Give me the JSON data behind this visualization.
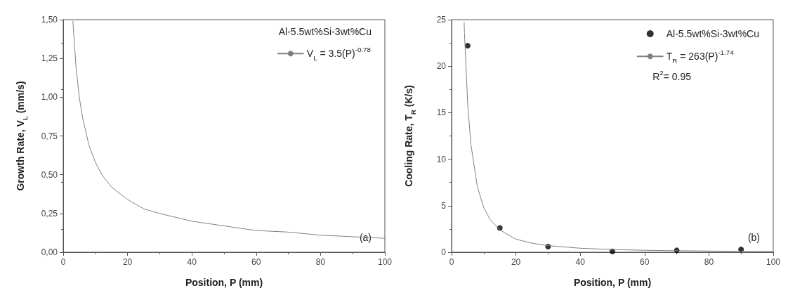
{
  "chart_data": [
    {
      "type": "line",
      "xlabel": "Position, P (mm)",
      "ylabel": "Growth Rate, V$_{L}$ (mm/s)",
      "legend_title": "Al-5.5wt%Si-3wt%Cu",
      "legend": "top right",
      "grid": false,
      "line_style": "solid",
      "xlim": [
        0,
        100
      ],
      "xticks": [
        0,
        20,
        40,
        60,
        80,
        100
      ],
      "ylim": [
        0,
        1.5
      ],
      "yticks": [
        {
          "value": 0,
          "label": "0,00"
        },
        {
          "value": 0.25,
          "label": "0,25"
        },
        {
          "value": 0.5,
          "label": "0,50"
        },
        {
          "value": 0.75,
          "label": "0,75"
        },
        {
          "value": 1,
          "label": "1,00"
        },
        {
          "value": 1.25,
          "label": "1,25"
        },
        {
          "value": 1.5,
          "label": "1,50"
        }
      ],
      "annotations": [
        "(a)"
      ],
      "series": [
        {
          "name": "V$_{L}$ = 3.5(P)$^{-0.78}$",
          "color": "#808080",
          "marker": "none",
          "x": [
            3,
            4,
            5,
            6,
            8,
            10,
            12,
            15,
            20,
            25,
            30,
            40,
            50,
            60,
            70,
            80,
            90,
            100
          ],
          "values": [
            1.49,
            1.19,
            1.0,
            0.87,
            0.69,
            0.58,
            0.5,
            0.42,
            0.34,
            0.28,
            0.25,
            0.2,
            0.17,
            0.14,
            0.13,
            0.11,
            0.1,
            0.09
          ]
        }
      ]
    },
    {
      "type": "scatter",
      "xlabel": "Position, P (mm)",
      "ylabel": "Cooling Rate, T$_{R}$ (K/s)",
      "legend": "top right",
      "grid": false,
      "line_style": "solid",
      "xlim": [
        0,
        100
      ],
      "xticks": [
        0,
        20,
        40,
        60,
        80,
        100
      ],
      "ylim": [
        0,
        25
      ],
      "yticks": [
        0,
        5,
        10,
        15,
        20,
        25
      ],
      "annotations": [
        "R$^{2}$= 0.95",
        "(b)"
      ],
      "series": [
        {
          "name": "Al-5.5wt%Si-3wt%Cu",
          "color": "#000000",
          "marker": "circle",
          "x": [
            5,
            15,
            30,
            50,
            70,
            90
          ],
          "values": [
            22.2,
            2.6,
            0.6,
            0.1,
            0.2,
            0.3
          ]
        },
        {
          "type": "line",
          "name": "T$_{R}$ = 263(P)$^{-1.74}$",
          "color": "#808080",
          "marker": "none",
          "x": [
            3.9,
            4,
            5,
            6,
            8,
            10,
            12,
            15,
            20,
            25,
            30,
            40,
            50,
            60,
            70,
            80,
            90,
            100
          ],
          "values": [
            24.7,
            23.6,
            16.0,
            11.6,
            7.05,
            4.8,
            3.5,
            2.4,
            1.4,
            0.97,
            0.71,
            0.43,
            0.29,
            0.21,
            0.16,
            0.13,
            0.1,
            0.09
          ]
        }
      ]
    }
  ]
}
